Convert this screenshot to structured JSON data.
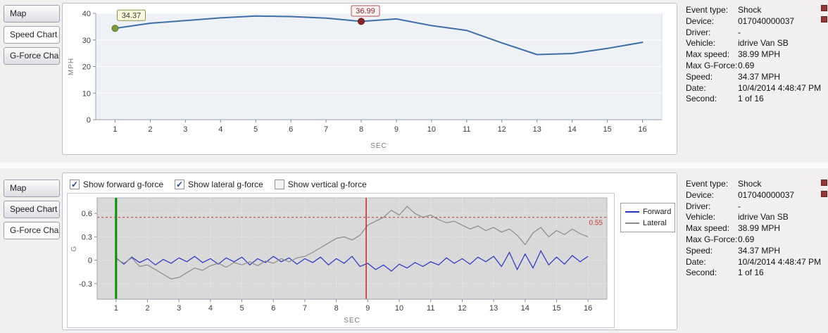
{
  "tabs": [
    "Map",
    "Speed Chart",
    "G-Force Chart"
  ],
  "top_panel": {
    "active_tab": "Speed Chart"
  },
  "bottom_panel": {
    "active_tab": "G-Force Chart"
  },
  "gforce_controls": {
    "checkboxes": [
      {
        "label": "Show forward g-force",
        "checked": true
      },
      {
        "label": "Show lateral g-force",
        "checked": true
      },
      {
        "label": "Show vertical g-force",
        "checked": false
      }
    ]
  },
  "event_info": {
    "rows": [
      {
        "label": "Event type:",
        "value": "Shock"
      },
      {
        "label": "Device:",
        "value": "017040000037"
      },
      {
        "label": "Driver:",
        "value": "-"
      },
      {
        "label": "Vehicle:",
        "value": "idrive Van SB"
      },
      {
        "label": "Max speed:",
        "value": "38.99 MPH"
      },
      {
        "label": "Max G-Force:",
        "value": "0.69"
      },
      {
        "label": "Speed:",
        "value": "34.37 MPH"
      },
      {
        "label": "Date:",
        "value": "10/4/2014 4:48:47 PM"
      },
      {
        "label": "Second:",
        "value": "1 of 16"
      }
    ]
  },
  "colors": {
    "speed_line": "#3f6fa8",
    "forward": "#2633c8",
    "lateral": "#8a8a8a",
    "threshold": "#cc3333",
    "marker_green": "#7d9a3c",
    "marker_red": "#8b2626",
    "vline_green": "#089000",
    "vline_red": "#cc2222"
  },
  "chart_data": [
    {
      "id": "speed",
      "type": "line",
      "title": "",
      "xlabel": "SEC",
      "ylabel": "MPH",
      "xlim": [
        0.45,
        16.55
      ],
      "ylim": [
        0,
        40
      ],
      "yticks": [
        0,
        10,
        20,
        30,
        40
      ],
      "x": [
        1,
        2,
        3,
        4,
        5,
        6,
        7,
        8,
        9,
        10,
        11,
        12,
        13,
        14,
        15,
        16
      ],
      "values": [
        34.37,
        36.3,
        37.3,
        38.3,
        38.99,
        38.8,
        38.2,
        36.99,
        37.9,
        35.4,
        33.6,
        28.9,
        24.5,
        24.9,
        26.8,
        29.1
      ],
      "line_color": "#3f6fa8",
      "annotations": [
        {
          "x": 1,
          "y": 34.37,
          "label": "34.37",
          "marker": "#7d9a3c",
          "marker_edge": "#5a7322",
          "border": "#8a8f4a",
          "fill": "#fbfbdc",
          "text_color": "#333333"
        },
        {
          "x": 8,
          "y": 36.99,
          "label": "36.99",
          "marker": "#8b2626",
          "marker_edge": "#5e1717",
          "border": "#b05050",
          "fill": "#fdf3f3",
          "text_color": "#8b2626"
        }
      ]
    },
    {
      "id": "gforce",
      "type": "line",
      "title": "",
      "xlabel": "SEC",
      "ylabel": "G",
      "xlim": [
        0.4,
        16.6
      ],
      "ylim": [
        -0.5,
        0.8
      ],
      "xticks": [
        1,
        2,
        3,
        4,
        5,
        6,
        7,
        8,
        9,
        10,
        11,
        12,
        13,
        14,
        15,
        16
      ],
      "yticks": [
        -0.3,
        0,
        0.3,
        0.6
      ],
      "x_start": 1,
      "x_step": 0.25,
      "series": [
        {
          "name": "Forward",
          "color": "#2633c8",
          "values": [
            0.03,
            -0.05,
            0.04,
            -0.03,
            0.02,
            -0.06,
            0.01,
            -0.04,
            0.03,
            -0.02,
            0.05,
            -0.03,
            0.02,
            -0.05,
            0.03,
            -0.02,
            0.04,
            -0.06,
            0.02,
            -0.03,
            0.05,
            -0.02,
            0.03,
            -0.05,
            0.02,
            -0.03,
            0.04,
            -0.06,
            0.02,
            -0.04,
            0.05,
            -0.08,
            -0.04,
            -0.12,
            -0.06,
            -0.14,
            -0.05,
            -0.1,
            -0.03,
            -0.08,
            -0.02,
            -0.06,
            0.03,
            -0.04,
            0.02,
            -0.05,
            0.04,
            -0.02,
            0.05,
            -0.08,
            0.1,
            -0.12,
            0.08,
            -0.1,
            0.12,
            -0.06,
            0.04,
            -0.05,
            0.06,
            -0.02,
            0.05
          ]
        },
        {
          "name": "Lateral",
          "color": "#8a8a8a",
          "values": [
            0.02,
            -0.04,
            0.03,
            -0.08,
            -0.06,
            -0.12,
            -0.18,
            -0.24,
            -0.22,
            -0.16,
            -0.1,
            -0.13,
            -0.07,
            -0.04,
            -0.09,
            -0.03,
            -0.06,
            -0.02,
            -0.07,
            -0.01,
            -0.04,
            0.02,
            -0.02,
            0.03,
            0.05,
            0.1,
            0.16,
            0.22,
            0.28,
            0.3,
            0.26,
            0.32,
            0.45,
            0.5,
            0.55,
            0.64,
            0.58,
            0.69,
            0.6,
            0.55,
            0.58,
            0.52,
            0.48,
            0.5,
            0.45,
            0.4,
            0.44,
            0.38,
            0.42,
            0.36,
            0.4,
            0.32,
            0.2,
            0.35,
            0.42,
            0.3,
            0.38,
            0.33,
            0.4,
            0.34,
            0.3
          ]
        }
      ],
      "threshold": {
        "value": 0.55,
        "label": "0.55",
        "color": "#cc3333"
      },
      "vlines": [
        {
          "x": 1,
          "color": "#089000",
          "width": 3
        },
        {
          "x": 8.95,
          "color": "#cc2222",
          "width": 1.5
        }
      ],
      "legend_position": "right"
    }
  ]
}
